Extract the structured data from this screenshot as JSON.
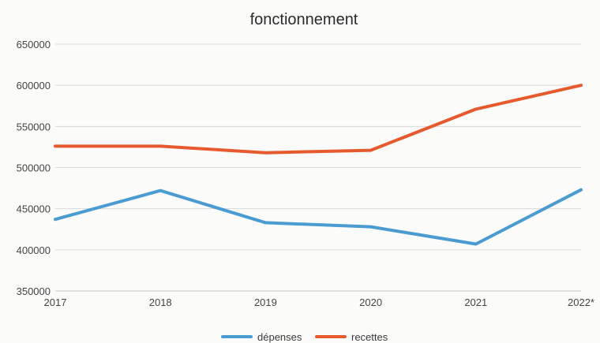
{
  "chart_data": {
    "type": "line",
    "title": "fonctionnement",
    "categories": [
      "2017",
      "2018",
      "2019",
      "2020",
      "2021",
      "2022*"
    ],
    "series": [
      {
        "name": "dépenses",
        "color": "#4b9bd3",
        "values": [
          437000,
          472000,
          433000,
          428000,
          407000,
          473000
        ]
      },
      {
        "name": "recettes",
        "color": "#e65a2e",
        "values": [
          526000,
          526000,
          518000,
          521000,
          571000,
          600000
        ]
      }
    ],
    "yticks": [
      "650000",
      "600000",
      "550000",
      "500000",
      "450000",
      "400000",
      "350000"
    ],
    "ylim": [
      350000,
      650000
    ],
    "grid": true,
    "legend": "bottom-center"
  }
}
